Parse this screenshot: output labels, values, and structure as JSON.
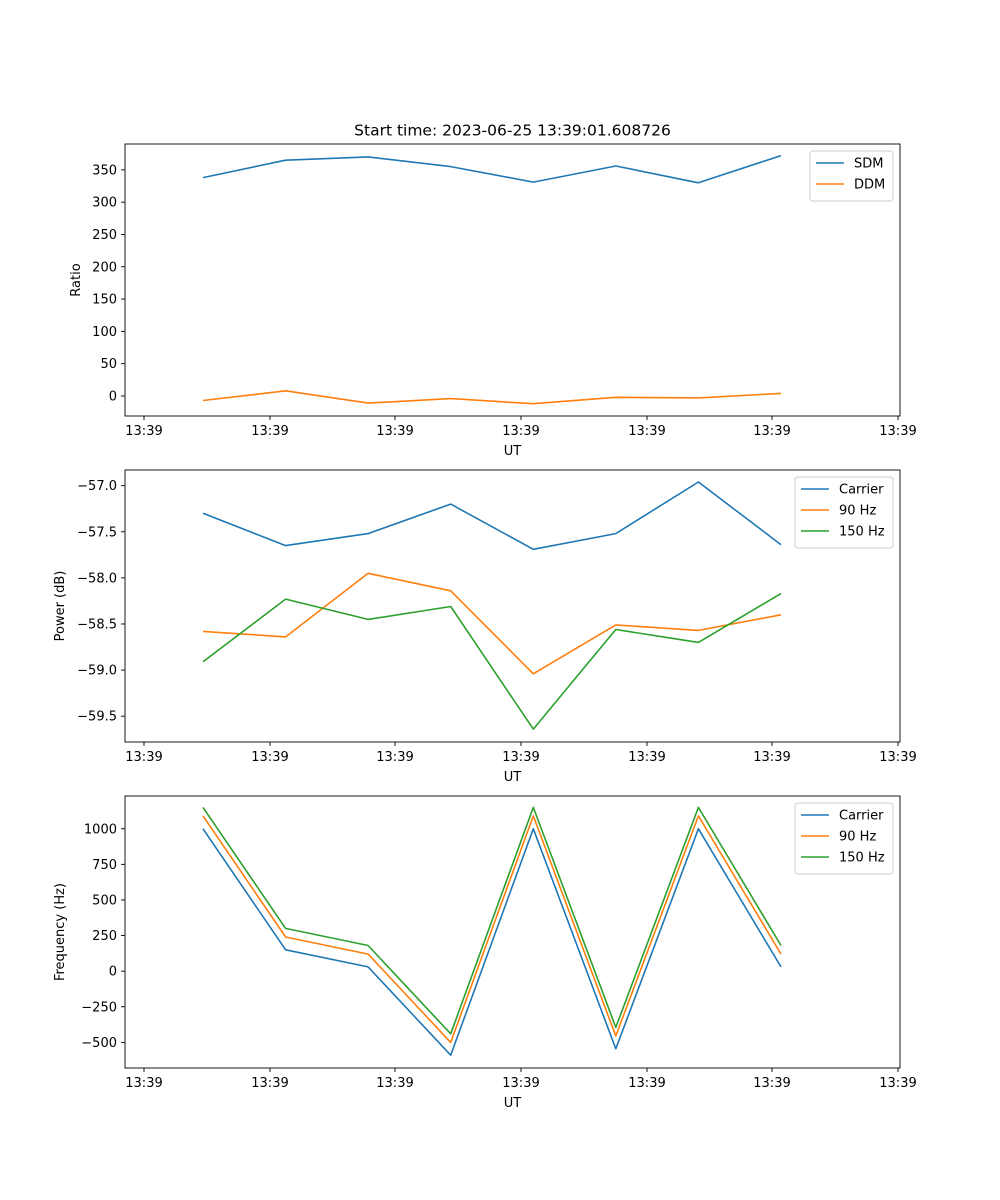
{
  "title": "Start time: 2023-06-25 13:39:01.608726",
  "chart_data": [
    {
      "type": "line",
      "xlabel": "UT",
      "ylabel": "Ratio",
      "xticks": [
        "13:39",
        "13:39",
        "13:39",
        "13:39",
        "13:39",
        "13:39",
        "13:39"
      ],
      "xtick_last": "13:40",
      "yticks": [
        "0",
        "50",
        "100",
        "150",
        "200",
        "250",
        "300",
        "350"
      ],
      "ylim": [
        -31,
        390
      ],
      "legend_position": "upper right",
      "x_points": 8,
      "series": [
        {
          "name": "SDM",
          "color": "#1f77b4",
          "values": [
            338,
            365,
            370,
            355,
            331,
            356,
            330,
            372
          ]
        },
        {
          "name": "DDM",
          "color": "#ff7f0e",
          "values": [
            -7,
            8,
            -11,
            -4,
            -12,
            -2,
            -3,
            4
          ]
        }
      ]
    },
    {
      "type": "line",
      "xlabel": "UT",
      "ylabel": "Power (dB)",
      "xticks": [
        "13:39",
        "13:39",
        "13:39",
        "13:39",
        "13:39",
        "13:39",
        "13:39"
      ],
      "xtick_last": "13:40",
      "yticks": [
        "−59.5",
        "−59.0",
        "−58.5",
        "−58.0",
        "−57.5",
        "−57.0"
      ],
      "ylim": [
        -59.78,
        -56.83
      ],
      "legend_position": "upper right",
      "x_points": 8,
      "series": [
        {
          "name": "Carrier",
          "color": "#1f77b4",
          "values": [
            -57.3,
            -57.65,
            -57.52,
            -57.2,
            -57.69,
            -57.52,
            -56.96,
            -57.64
          ]
        },
        {
          "name": "90 Hz",
          "color": "#ff7f0e",
          "values": [
            -58.58,
            -58.64,
            -57.95,
            -58.14,
            -59.04,
            -58.51,
            -58.57,
            -58.4
          ]
        },
        {
          "name": "150 Hz",
          "color": "#2ca02c",
          "values": [
            -58.91,
            -58.23,
            -58.45,
            -58.31,
            -59.64,
            -58.56,
            -58.7,
            -58.17
          ]
        }
      ]
    },
    {
      "type": "line",
      "xlabel": "UT",
      "ylabel": "Frequency (Hz)",
      "xticks": [
        "13:39",
        "13:39",
        "13:39",
        "13:39",
        "13:39",
        "13:39",
        "13:39"
      ],
      "xtick_last": "13:40",
      "yticks": [
        "−500",
        "−250",
        "0",
        "250",
        "500",
        "750",
        "1000"
      ],
      "ylim": [
        -680,
        1230
      ],
      "legend_position": "upper right",
      "x_points": 8,
      "series": [
        {
          "name": "Carrier",
          "color": "#1f77b4",
          "values": [
            1000,
            150,
            30,
            -590,
            1000,
            -545,
            1000,
            30
          ]
        },
        {
          "name": "90 Hz",
          "color": "#ff7f0e",
          "values": [
            1090,
            240,
            120,
            -500,
            1090,
            -455,
            1090,
            120
          ]
        },
        {
          "name": "150 Hz",
          "color": "#2ca02c",
          "values": [
            1150,
            300,
            180,
            -440,
            1150,
            -395,
            1150,
            180
          ]
        }
      ]
    }
  ]
}
